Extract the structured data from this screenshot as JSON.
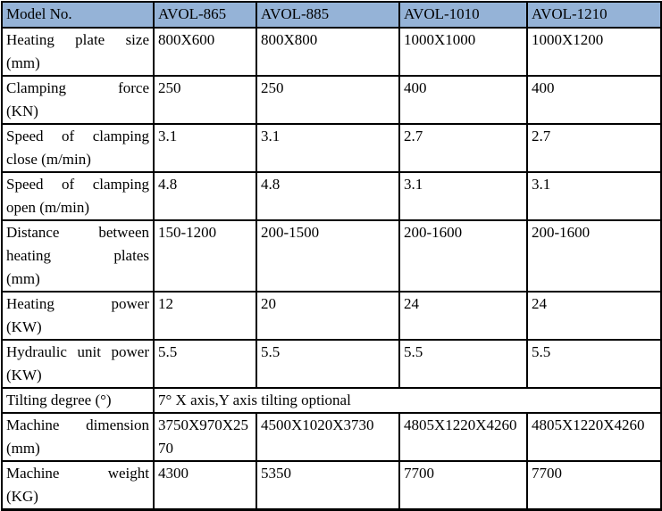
{
  "colors": {
    "header_bg": "#95B3D7",
    "border": "#000000",
    "text": "#000000"
  },
  "table": {
    "header": {
      "label": "Model No.",
      "models": [
        "AVOL-865",
        "AVOL-885",
        "AVOL-1010",
        "AVOL-1210"
      ]
    },
    "rows": [
      {
        "label": "Heating plate size\n(mm)",
        "values": [
          "800X600",
          "800X800",
          "1000X1000",
          "1000X1200"
        ]
      },
      {
        "label": "Clamping force\n(KN)",
        "values": [
          "250",
          "250",
          "400",
          "400"
        ]
      },
      {
        "label": "Speed of clamping\nclose (m/min)",
        "values": [
          "3.1",
          "3.1",
          "2.7",
          "2.7"
        ]
      },
      {
        "label": "Speed of clamping\nopen (m/min)",
        "values": [
          "4.8",
          "4.8",
          "3.1",
          "3.1"
        ]
      },
      {
        "label": "Distance between\nheating plates\n(mm)",
        "values": [
          "150-1200",
          "200-1500",
          "200-1600",
          "200-1600"
        ]
      },
      {
        "label": "Heating power\n(KW)",
        "values": [
          "12",
          "20",
          "24",
          "24"
        ]
      },
      {
        "label": "Hydraulic unit power\n(KW)",
        "values": [
          "5.5",
          "5.5",
          "5.5",
          "5.5"
        ]
      },
      {
        "label": "Tilting degree (°)",
        "value": "7° X axis,Y axis tilting optional"
      },
      {
        "label": "Machine dimension\n(mm)",
        "values": [
          "3750X970X2570",
          "4500X1020X3730",
          "4805X1220X4260",
          "4805X1220X4260"
        ]
      },
      {
        "label": "Machine weight\n(KG)",
        "values": [
          "4300",
          "5350",
          "7700",
          "7700"
        ]
      }
    ]
  }
}
